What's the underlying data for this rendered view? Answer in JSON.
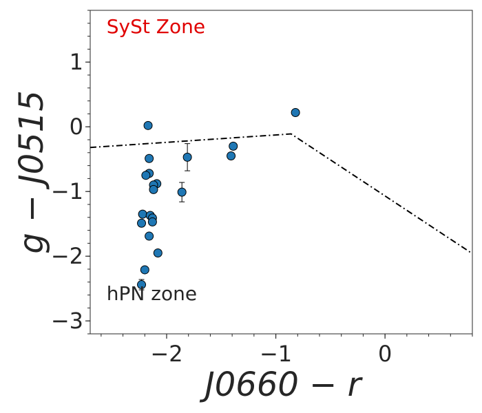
{
  "chart_data": {
    "type": "scatter",
    "title": "",
    "xlabel": "J0660 − r",
    "ylabel": "g − J0515",
    "xlim": [
      -2.7,
      0.8
    ],
    "ylim": [
      -3.2,
      1.8
    ],
    "x_ticks": [
      {
        "value": -2,
        "label": "−2"
      },
      {
        "value": -1,
        "label": "−1"
      },
      {
        "value": 0,
        "label": "0"
      }
    ],
    "y_ticks": [
      {
        "value": 1,
        "label": "1"
      },
      {
        "value": 0,
        "label": "0"
      },
      {
        "value": -1,
        "label": "−1"
      },
      {
        "value": -2,
        "label": "−2"
      },
      {
        "value": -3,
        "label": "−3"
      }
    ],
    "x_minor_step": 0.2,
    "y_minor_step": 0.2,
    "grid": false,
    "marker_color": "#1f77b4",
    "marker_edge_color": "#000000",
    "points": [
      {
        "x": -0.82,
        "y": 0.22,
        "yerr": 0.03
      },
      {
        "x": -2.17,
        "y": 0.02,
        "yerr": 0.03
      },
      {
        "x": -1.39,
        "y": -0.3,
        "yerr": 0.04
      },
      {
        "x": -1.41,
        "y": -0.45,
        "yerr": 0.05
      },
      {
        "x": -1.81,
        "y": -0.47,
        "yerr": 0.21
      },
      {
        "x": -2.16,
        "y": -0.49,
        "yerr": 0.03
      },
      {
        "x": -2.16,
        "y": -0.72,
        "yerr": 0.03
      },
      {
        "x": -2.19,
        "y": -0.75,
        "yerr": 0.03
      },
      {
        "x": -2.09,
        "y": -0.88,
        "yerr": 0.03
      },
      {
        "x": -2.12,
        "y": -0.9,
        "yerr": 0.03
      },
      {
        "x": -2.12,
        "y": -0.97,
        "yerr": 0.03
      },
      {
        "x": -1.86,
        "y": -1.01,
        "yerr": 0.15
      },
      {
        "x": -2.22,
        "y": -1.35,
        "yerr": 0.03
      },
      {
        "x": -2.15,
        "y": -1.37,
        "yerr": 0.03
      },
      {
        "x": -2.13,
        "y": -1.41,
        "yerr": 0.03
      },
      {
        "x": -2.13,
        "y": -1.47,
        "yerr": 0.03
      },
      {
        "x": -2.23,
        "y": -1.49,
        "yerr": 0.03
      },
      {
        "x": -2.16,
        "y": -1.69,
        "yerr": 0.03
      },
      {
        "x": -2.08,
        "y": -1.95,
        "yerr": 0.03
      },
      {
        "x": -2.2,
        "y": -2.21,
        "yerr": 0.03
      },
      {
        "x": -2.23,
        "y": -2.44,
        "yerr": 0.08
      }
    ],
    "boundary_line": {
      "style": "dash-dot",
      "color": "#000000",
      "points": [
        [
          -2.7,
          -0.32
        ],
        [
          -0.86,
          -0.11
        ],
        [
          0.8,
          -1.96
        ]
      ]
    },
    "annotations": [
      {
        "id": "syst",
        "text": "SySt Zone",
        "x": -2.55,
        "y": 1.45,
        "color": "#e00000"
      },
      {
        "id": "hpn",
        "text": "hPN zone",
        "x": -2.55,
        "y": -2.68,
        "color": "#262626"
      }
    ]
  }
}
